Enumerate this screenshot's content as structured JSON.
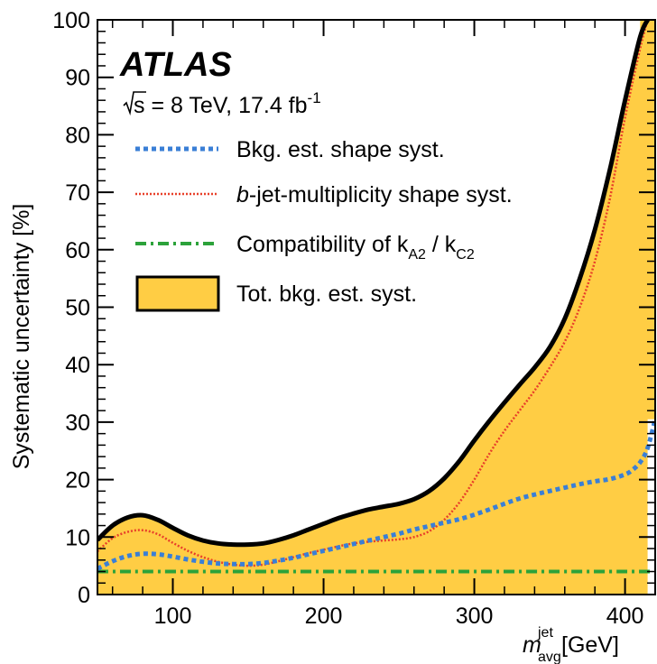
{
  "chart_data": {
    "type": "area",
    "experiment": "ATLAS",
    "energy_prefix": "s",
    "energy_text": " = 8 TeV, 17.4 fb",
    "energy_sup": "-1",
    "ylabel": "Systematic uncertainty [%]",
    "xlabel": {
      "symbol": "m",
      "sup": "jet",
      "sub": "avg",
      "unit": " [GeV]"
    },
    "xlim": [
      50,
      420
    ],
    "ylim": [
      0,
      100
    ],
    "xticks": [
      100,
      200,
      300,
      400
    ],
    "yticks": [
      0,
      10,
      20,
      30,
      40,
      50,
      60,
      70,
      80,
      90,
      100
    ],
    "series": [
      {
        "name": "Bkg. est. shape syst.",
        "color": "#3a7fd6",
        "style": "dotted",
        "x": [
          50,
          60,
          70,
          80,
          90,
          100,
          110,
          120,
          130,
          140,
          150,
          160,
          170,
          180,
          190,
          200,
          210,
          220,
          230,
          240,
          250,
          260,
          270,
          280,
          290,
          300,
          310,
          320,
          330,
          340,
          350,
          360,
          370,
          380,
          390,
          400,
          405,
          410,
          415,
          420
        ],
        "values": [
          4.5,
          5.8,
          6.7,
          7.1,
          7.0,
          6.6,
          6.1,
          5.7,
          5.4,
          5.3,
          5.3,
          5.5,
          5.9,
          6.4,
          7.0,
          7.6,
          8.2,
          8.8,
          9.4,
          10.0,
          10.6,
          11.3,
          11.9,
          12.5,
          13.1,
          13.9,
          14.8,
          15.8,
          16.7,
          17.4,
          18.0,
          18.6,
          19.2,
          19.7,
          20.1,
          20.9,
          21.7,
          23.0,
          25.5,
          30.5
        ]
      },
      {
        "name": "b-jet-multiplicity shape syst.",
        "name_italic": "b",
        "name_rest": "-jet-multiplicity shape syst.",
        "color": "#e8402a",
        "style": "dense-dotted",
        "x": [
          50,
          60,
          70,
          80,
          90,
          100,
          110,
          120,
          130,
          140,
          150,
          160,
          170,
          180,
          190,
          200,
          210,
          220,
          230,
          240,
          250,
          260,
          270,
          280,
          290,
          300,
          310,
          320,
          330,
          340,
          350,
          360,
          370,
          380,
          390,
          400,
          410,
          415
        ],
        "values": [
          7.5,
          9.8,
          10.9,
          11.2,
          10.5,
          9.0,
          7.6,
          6.5,
          5.7,
          5.2,
          5.0,
          5.2,
          5.8,
          6.5,
          7.2,
          7.8,
          8.4,
          8.9,
          9.2,
          9.4,
          9.6,
          10.0,
          11.0,
          13.0,
          16.0,
          20.0,
          24.5,
          28.5,
          32.0,
          35.5,
          39.5,
          44.0,
          50.0,
          58.0,
          69.0,
          83.0,
          95.0,
          100.0
        ]
      },
      {
        "name_prefix": "Compatibility of k",
        "name_sub1": "A2",
        "name_mid": " / k",
        "name_sub2": "C2",
        "color": "#2ca23a",
        "style": "dash-dot",
        "x": [
          50,
          420
        ],
        "values": [
          4.0,
          4.0
        ]
      },
      {
        "name": "Tot. bkg. est. syst.",
        "color": "#000000",
        "fill": "#ffcd44",
        "style": "filled-band",
        "x": [
          50,
          60,
          70,
          80,
          90,
          100,
          110,
          120,
          130,
          140,
          150,
          160,
          170,
          180,
          190,
          200,
          210,
          220,
          230,
          240,
          250,
          260,
          270,
          280,
          290,
          300,
          310,
          320,
          330,
          340,
          350,
          360,
          370,
          380,
          390,
          400,
          410,
          415
        ],
        "values": [
          9.5,
          12.0,
          13.4,
          13.8,
          13.0,
          11.6,
          10.3,
          9.4,
          8.9,
          8.7,
          8.7,
          8.9,
          9.5,
          10.3,
          11.3,
          12.3,
          13.3,
          14.1,
          14.8,
          15.3,
          15.8,
          16.6,
          18.0,
          20.2,
          23.2,
          26.8,
          30.2,
          33.4,
          36.5,
          39.5,
          43.0,
          48.0,
          55.0,
          63.5,
          74.0,
          86.0,
          97.0,
          100.0
        ]
      }
    ],
    "grid": false,
    "legend_position": "top-left"
  }
}
